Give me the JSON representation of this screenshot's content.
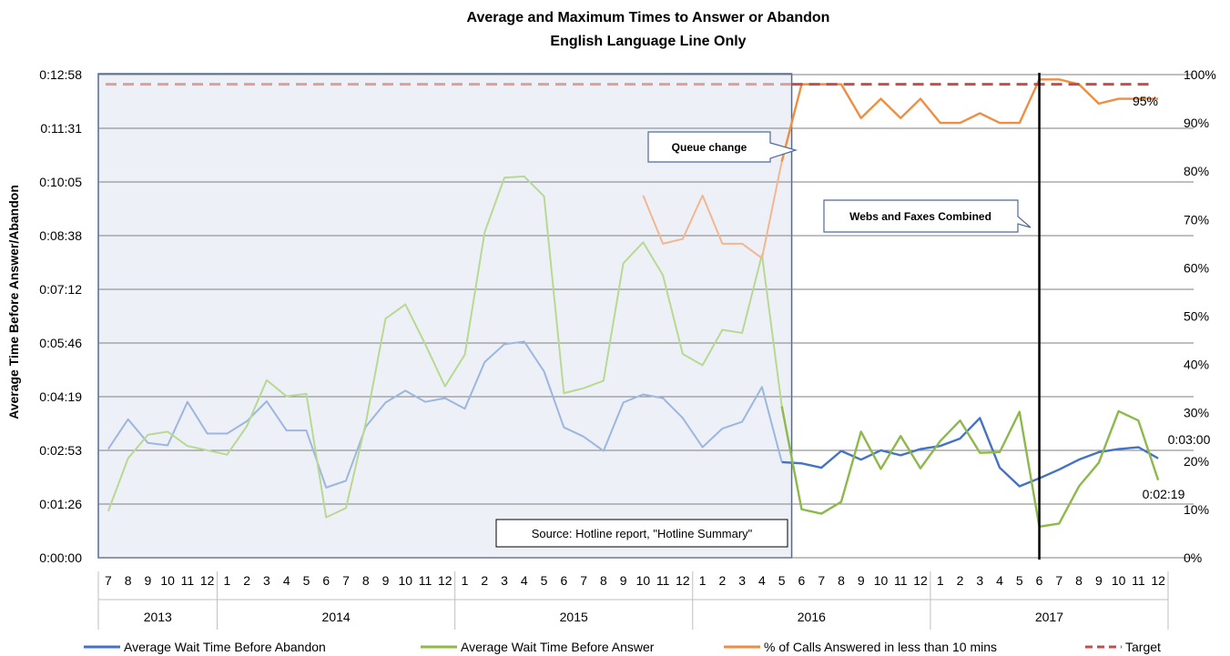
{
  "colors": {
    "abandon": "#4472C4",
    "abandon_faded": "#9DB6DF",
    "answer": "#8DB84A",
    "answer_faded": "#B9D891",
    "pct": "#ED8E43",
    "pct_faded": "#F2B690",
    "target": "#C0504D",
    "target_faded": "#D9A09E",
    "grid": "#7F7F7F",
    "shade_fill": "#EDF1F7",
    "shade_border": "#4F6B9A",
    "vline": "#000000"
  },
  "chart_data": {
    "type": "line",
    "title": "Average and Maximum Times to Answer or Abandon",
    "subtitle": "English Language Line Only",
    "ylabel": "Average Time Before Answer/Abandon",
    "y_ticks": [
      "0:00:00",
      "0:01:26",
      "0:02:53",
      "0:04:19",
      "0:05:46",
      "0:07:12",
      "0:08:38",
      "0:10:05",
      "0:11:31",
      "0:12:58"
    ],
    "y_max_seconds": 778,
    "y2_ticks": [
      "0%",
      "10%",
      "20%",
      "30%",
      "40%",
      "50%",
      "60%",
      "70%",
      "80%",
      "90%",
      "100%"
    ],
    "y2_range": [
      0,
      100
    ],
    "month_labels": [
      "7",
      "8",
      "9",
      "10",
      "11",
      "12",
      "1",
      "2",
      "3",
      "4",
      "5",
      "6",
      "7",
      "8",
      "9",
      "10",
      "11",
      "12",
      "1",
      "2",
      "3",
      "4",
      "5",
      "6",
      "7",
      "8",
      "9",
      "10",
      "11",
      "12",
      "1",
      "2",
      "3",
      "4",
      "5",
      "6",
      "7",
      "8",
      "9",
      "10",
      "11",
      "12",
      "1",
      "2",
      "3",
      "4",
      "5",
      "6",
      "7",
      "8",
      "9",
      "10",
      "11",
      "12"
    ],
    "years": [
      {
        "label": "2013",
        "start": 0,
        "count": 6
      },
      {
        "label": "2014",
        "start": 6,
        "count": 12
      },
      {
        "label": "2015",
        "start": 18,
        "count": 12
      },
      {
        "label": "2016",
        "start": 30,
        "count": 12
      },
      {
        "label": "2017",
        "start": 42,
        "count": 12
      }
    ],
    "series": [
      {
        "name": "Average Wait Time Before Abandon",
        "key": "abandon",
        "axis": "left",
        "unit": "seconds",
        "values": [
          175,
          223,
          185,
          181,
          251,
          200,
          200,
          220,
          252,
          205,
          205,
          113,
          124,
          211,
          250,
          269,
          251,
          257,
          240,
          315,
          344,
          348,
          300,
          210,
          195,
          172,
          250,
          263,
          257,
          225,
          178,
          208,
          219,
          275,
          154,
          152,
          145,
          172,
          158,
          173,
          165,
          175,
          180,
          192,
          225,
          145,
          115,
          128,
          142,
          158,
          170,
          175,
          178,
          160
        ]
      },
      {
        "name": "Average Wait Time Before Answer",
        "key": "answer",
        "axis": "left",
        "unit": "seconds",
        "values": [
          75,
          160,
          198,
          203,
          180,
          173,
          166,
          212,
          286,
          260,
          264,
          65,
          80,
          217,
          385,
          408,
          344,
          276,
          327,
          524,
          612,
          614,
          582,
          265,
          273,
          285,
          474,
          508,
          455,
          328,
          310,
          367,
          362,
          488,
          244,
          78,
          71,
          90,
          203,
          143,
          196,
          144,
          188,
          221,
          169,
          170,
          235,
          50,
          55,
          115,
          153,
          236,
          221,
          125
        ]
      },
      {
        "name": "% of Calls Answered in less than 10 mins",
        "key": "pct",
        "axis": "right",
        "unit": "percent",
        "start_index": 27,
        "values": [
          75,
          65,
          66,
          75,
          65,
          65,
          62,
          82,
          98,
          98,
          98,
          91,
          95,
          91,
          95,
          90,
          90,
          92,
          90,
          90,
          99,
          99,
          98,
          94,
          95,
          95,
          95
        ]
      },
      {
        "name": "Target",
        "key": "target",
        "axis": "right",
        "unit": "percent",
        "constant": 98
      }
    ],
    "shaded_period": {
      "from_index": 0,
      "to_index": 34
    },
    "vertical_marker_index": 47,
    "annotations": {
      "queue_change": "Queue change",
      "webs_faxes": "Webs and Faxes Combined",
      "source": "Source: Hotline report, \"Hotline Summary\"",
      "label_95": "95%",
      "label_0300": "0:03:00",
      "label_0219": "0:02:19"
    },
    "legend_position": "bottom"
  }
}
